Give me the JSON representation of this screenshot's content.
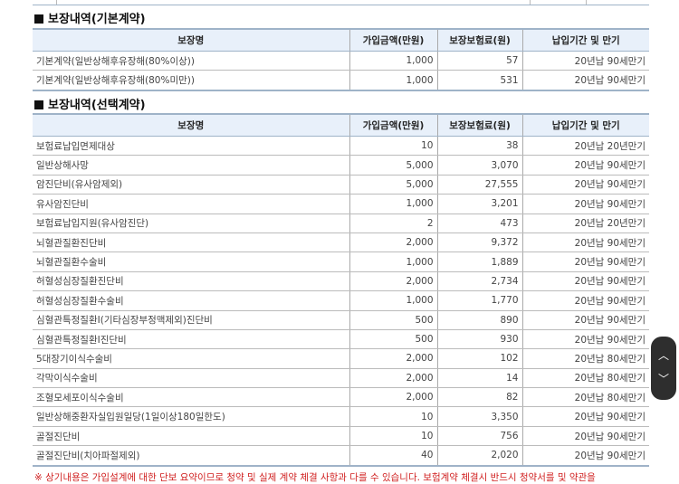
{
  "headers": {
    "name": "보장명",
    "amount": "가입금액(만원)",
    "premium": "보장보험료(원)",
    "period": "납입기간 및 만기"
  },
  "basic": {
    "title": "보장내역(기본계약)",
    "rows": [
      [
        "기본계약(일반상해후유장해(80%이상))",
        "1,000",
        "57",
        "20년납 90세만기"
      ],
      [
        "기본계약(일반상해후유장해(80%미만))",
        "1,000",
        "531",
        "20년납 90세만기"
      ]
    ]
  },
  "optional": {
    "title": "보장내역(선택계약)",
    "rows": [
      [
        "보험료납입면제대상",
        "10",
        "38",
        "20년납 20년만기"
      ],
      [
        "일반상해사망",
        "5,000",
        "3,070",
        "20년납 90세만기"
      ],
      [
        "암진단비(유사암제외)",
        "5,000",
        "27,555",
        "20년납 90세만기"
      ],
      [
        "유사암진단비",
        "1,000",
        "3,201",
        "20년납 90세만기"
      ],
      [
        "보험료납입지원(유사암진단)",
        "2",
        "473",
        "20년납 20년만기"
      ],
      [
        "뇌혈관질환진단비",
        "2,000",
        "9,372",
        "20년납 90세만기"
      ],
      [
        "뇌혈관질환수술비",
        "1,000",
        "1,889",
        "20년납 90세만기"
      ],
      [
        "허혈성심장질환진단비",
        "2,000",
        "2,734",
        "20년납 90세만기"
      ],
      [
        "허혈성심장질환수술비",
        "1,000",
        "1,770",
        "20년납 90세만기"
      ],
      [
        "심혈관특정질환Ⅰ(기타심장부정맥제외)진단비",
        "500",
        "890",
        "20년납 90세만기"
      ],
      [
        "심혈관특정질환Ⅰ진단비",
        "500",
        "930",
        "20년납 90세만기"
      ],
      [
        "5대장기이식수술비",
        "2,000",
        "102",
        "20년납 80세만기"
      ],
      [
        "각막이식수술비",
        "2,000",
        "14",
        "20년납 80세만기"
      ],
      [
        "조혈모세포이식수술비",
        "2,000",
        "82",
        "20년납 80세만기"
      ],
      [
        "일반상해중환자실입원일당(1일이상180일한도)",
        "10",
        "3,350",
        "20년납 90세만기"
      ],
      [
        "골절진단비",
        "10",
        "756",
        "20년납 90세만기"
      ],
      [
        "골절진단비(치아파절제외)",
        "40",
        "2,020",
        "20년납 90세만기"
      ]
    ]
  },
  "note": "※ 상기내용은 가입설계에 대한 단보 요약이므로 청약 및 실제 계약 체결 사항과 다를 수 있습니다. 보험계약 체결시 반드시 청약서를 및 약관을",
  "scroll": {
    "up_icon": "chevron-up-icon",
    "down_icon": "chevron-down-icon"
  },
  "colors": {
    "header_bg": "#e8f0fa",
    "note": "#d02020"
  }
}
